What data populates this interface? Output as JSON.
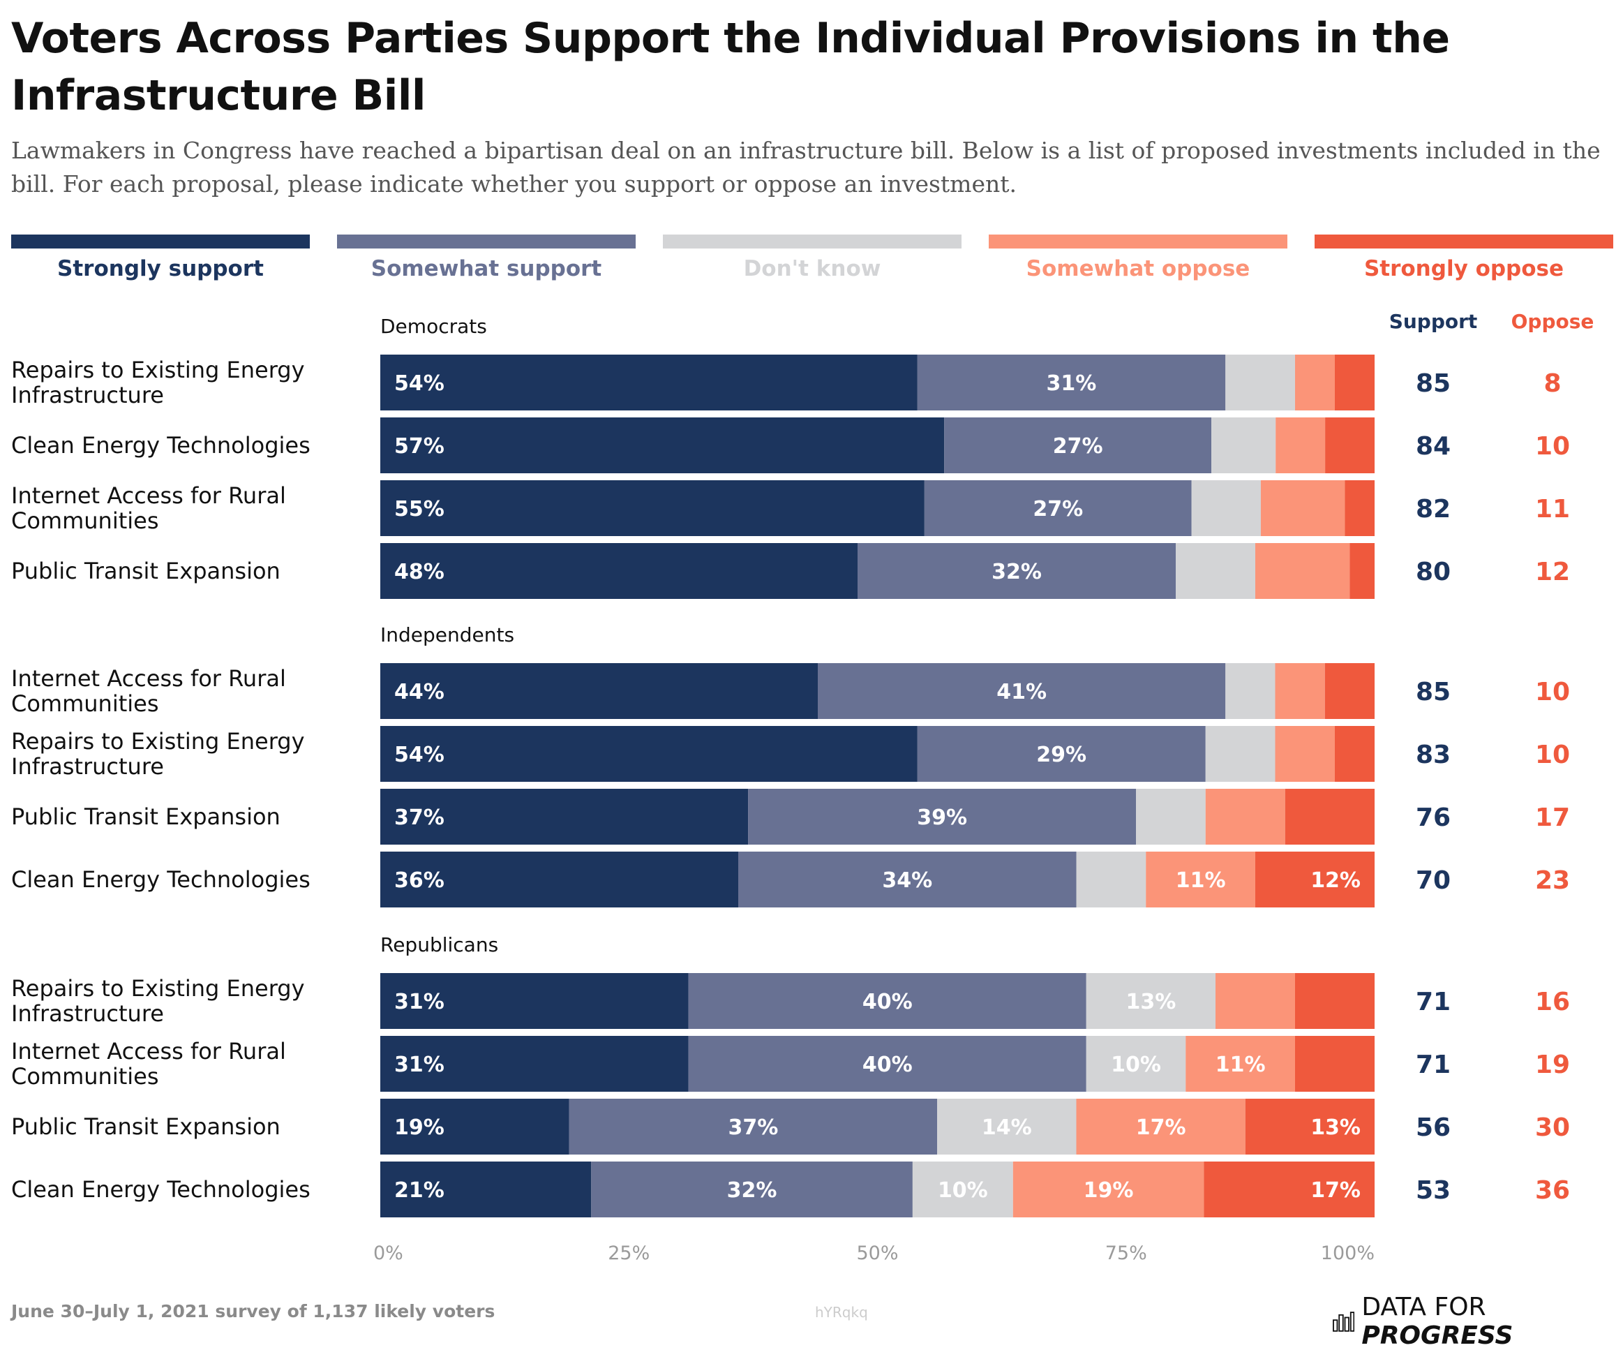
{
  "title": "Voters Across Parties Support the Individual Provisions in the Infrastructure Bill",
  "subtitle": "Lawmakers in Congress have reached a bipartisan deal on an infrastructure bill. Below is a list of proposed investments included in the bill. For each proposal, please indicate whether you support or oppose an investment.",
  "footer": {
    "source": "June 30–July 1, 2021 survey of 1,137 likely voters",
    "chart_id": "hYRqkq",
    "logo_prefix": "DATA FOR",
    "logo_suffix": "PROGRESS"
  },
  "logo_icon": "bar-chart-icon",
  "colors": {
    "strongly_support": "#1c355e",
    "somewhat_support": "#687193",
    "dont_know": "#d3d4d6",
    "somewhat_oppose": "#fb9478",
    "strongly_oppose": "#ef593d",
    "support_text": "#1c355e",
    "oppose_text": "#ef593d"
  },
  "chart_data": {
    "type": "bar",
    "orientation": "horizontal",
    "stacked": true,
    "legend_position": "top",
    "series": [
      {
        "name": "Strongly support",
        "color": "#1c355e",
        "label_color": "#1c355e"
      },
      {
        "name": "Somewhat support",
        "color": "#687193",
        "label_color": "#687193"
      },
      {
        "name": "Don't know",
        "color": "#d3d4d6",
        "label_color": "#d3d4d6"
      },
      {
        "name": "Somewhat oppose",
        "color": "#fb9478",
        "label_color": "#fb9478"
      },
      {
        "name": "Strongly oppose",
        "color": "#ef593d",
        "label_color": "#ef593d"
      }
    ],
    "summary_columns": {
      "support": "Support",
      "oppose": "Oppose"
    },
    "xlim": [
      0,
      100
    ],
    "x_ticks": [
      "0%",
      "25%",
      "50%",
      "75%",
      "100%"
    ],
    "groups": [
      {
        "name": "Democrats",
        "rows": [
          {
            "category": "Repairs to Existing Energy Infrastructure",
            "values": [
              54,
              31,
              7,
              4,
              4
            ],
            "labels": [
              "54%",
              "31%",
              "",
              "",
              ""
            ],
            "support": "85",
            "oppose": "8"
          },
          {
            "category": "Clean Energy Technologies",
            "values": [
              57,
              27,
              6.5,
              5,
              5
            ],
            "labels": [
              "57%",
              "27%",
              "",
              "",
              ""
            ],
            "support": "84",
            "oppose": "10"
          },
          {
            "category": "Internet Access for Rural Communities",
            "values": [
              55,
              27,
              7,
              8.5,
              3
            ],
            "labels": [
              "55%",
              "27%",
              "",
              "",
              ""
            ],
            "support": "82",
            "oppose": "11"
          },
          {
            "category": "Public Transit Expansion",
            "values": [
              48,
              32,
              8,
              9.5,
              2.5
            ],
            "labels": [
              "48%",
              "32%",
              "",
              "",
              ""
            ],
            "support": "80",
            "oppose": "12"
          }
        ]
      },
      {
        "name": "Independents",
        "rows": [
          {
            "category": "Internet Access for Rural Communities",
            "values": [
              44,
              41,
              5,
              5,
              5
            ],
            "labels": [
              "44%",
              "41%",
              "",
              "",
              ""
            ],
            "support": "85",
            "oppose": "10"
          },
          {
            "category": "Repairs to Existing Energy Infrastructure",
            "values": [
              54,
              29,
              7,
              6,
              4
            ],
            "labels": [
              "54%",
              "29%",
              "",
              "",
              ""
            ],
            "support": "83",
            "oppose": "10"
          },
          {
            "category": "Public Transit Expansion",
            "values": [
              37,
              39,
              7,
              8,
              9
            ],
            "labels": [
              "37%",
              "39%",
              "",
              "",
              ""
            ],
            "support": "76",
            "oppose": "17"
          },
          {
            "category": "Clean Energy Technologies",
            "values": [
              36,
              34,
              7,
              11,
              12
            ],
            "labels": [
              "36%",
              "34%",
              "",
              "11%",
              "12%"
            ],
            "support": "70",
            "oppose": "23"
          }
        ]
      },
      {
        "name": "Republicans",
        "rows": [
          {
            "category": "Repairs to Existing Energy Infrastructure",
            "values": [
              31,
              40,
              13,
              8,
              8
            ],
            "labels": [
              "31%",
              "40%",
              "13%",
              "",
              ""
            ],
            "support": "71",
            "oppose": "16"
          },
          {
            "category": "Internet Access for Rural Communities",
            "values": [
              31,
              40,
              10,
              11,
              8
            ],
            "labels": [
              "31%",
              "40%",
              "10%",
              "11%",
              ""
            ],
            "support": "71",
            "oppose": "19"
          },
          {
            "category": "Public Transit Expansion",
            "values": [
              19,
              37,
              14,
              17,
              13
            ],
            "labels": [
              "19%",
              "37%",
              "14%",
              "17%",
              "13%"
            ],
            "support": "56",
            "oppose": "30"
          },
          {
            "category": "Clean Energy Technologies",
            "values": [
              21,
              32,
              10,
              19,
              17
            ],
            "labels": [
              "21%",
              "32%",
              "10%",
              "19%",
              "17%"
            ],
            "support": "53",
            "oppose": "36"
          }
        ]
      }
    ]
  }
}
